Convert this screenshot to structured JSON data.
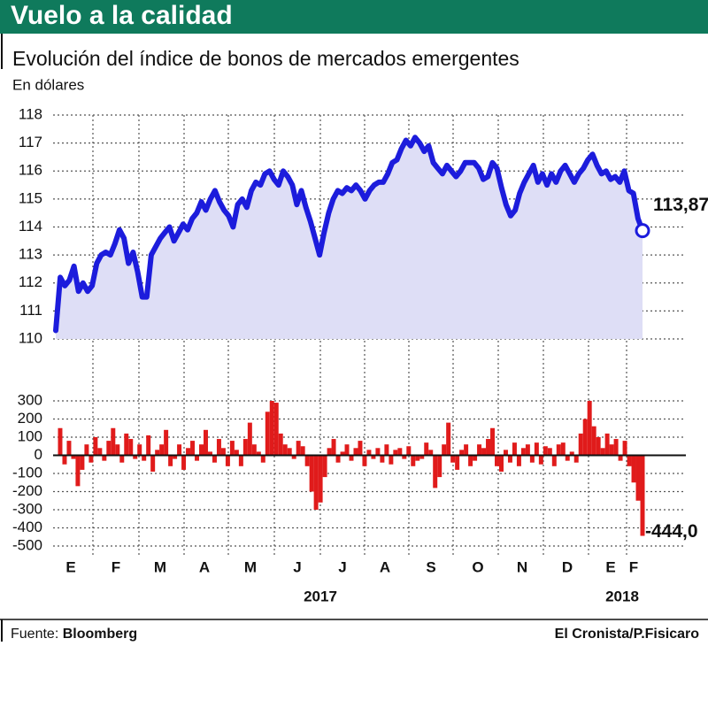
{
  "chart_data": [
    {
      "type": "line",
      "title": "Vuelo a la calidad",
      "subtitle": "Evolución del índice de bonos de mercados emergentes",
      "y_label": "En dólares",
      "ylim": [
        110,
        118
      ],
      "yticks": [
        110,
        111,
        112,
        113,
        114,
        115,
        116,
        117,
        118
      ],
      "grid": true,
      "series": [
        {
          "color": "#1c1cdc",
          "area_color": "#dedef6",
          "values": [
            110.3,
            112.2,
            111.9,
            112.1,
            112.6,
            111.7,
            112.0,
            111.7,
            111.9,
            112.7,
            113.0,
            113.1,
            113.0,
            113.4,
            113.9,
            113.6,
            112.7,
            113.1,
            112.4,
            111.5,
            111.5,
            113.0,
            113.3,
            113.6,
            113.8,
            114.0,
            113.5,
            113.8,
            114.1,
            113.9,
            114.3,
            114.5,
            114.9,
            114.6,
            115.0,
            115.3,
            114.9,
            114.6,
            114.4,
            114.0,
            114.8,
            115.0,
            114.7,
            115.3,
            115.6,
            115.5,
            115.9,
            116.0,
            115.7,
            115.5,
            116.0,
            115.8,
            115.5,
            114.8,
            115.3,
            114.7,
            114.2,
            113.6,
            113.0,
            113.8,
            114.5,
            115.0,
            115.3,
            115.2,
            115.4,
            115.3,
            115.5,
            115.3,
            115.0,
            115.3,
            115.5,
            115.6,
            115.6,
            115.9,
            116.3,
            116.4,
            116.8,
            117.1,
            116.9,
            117.2,
            117.0,
            116.7,
            116.9,
            116.3,
            116.1,
            115.9,
            116.2,
            116.0,
            115.8,
            116.0,
            116.3,
            116.3,
            116.3,
            116.1,
            115.7,
            115.8,
            116.3,
            116.1,
            115.4,
            114.8,
            114.4,
            114.6,
            115.2,
            115.6,
            115.9,
            116.2,
            115.6,
            115.9,
            115.5,
            115.9,
            115.6,
            116.0,
            116.2,
            115.9,
            115.6,
            115.9,
            116.1,
            116.4,
            116.6,
            116.2,
            115.9,
            116.0,
            115.7,
            115.8,
            115.6,
            116.0,
            115.3,
            115.2,
            114.3,
            113.87
          ]
        }
      ],
      "annotations": [
        {
          "label": "113,87",
          "value": 113.87
        }
      ]
    },
    {
      "type": "bar",
      "ylim": [
        -500,
        300
      ],
      "yticks": [
        300,
        200,
        100,
        0,
        -100,
        -200,
        -300,
        -400,
        -500
      ],
      "grid": true,
      "color": "#e01b1b",
      "values": [
        0,
        150,
        -50,
        80,
        -20,
        -170,
        -80,
        60,
        -40,
        100,
        40,
        -30,
        80,
        150,
        60,
        -40,
        120,
        90,
        -20,
        60,
        -30,
        110,
        -90,
        30,
        60,
        140,
        -60,
        -20,
        60,
        -80,
        40,
        80,
        -30,
        60,
        140,
        20,
        -40,
        90,
        40,
        -60,
        80,
        30,
        -60,
        90,
        180,
        60,
        20,
        -40,
        240,
        300,
        290,
        120,
        60,
        40,
        -20,
        80,
        50,
        -60,
        -200,
        -300,
        -260,
        -120,
        40,
        90,
        -40,
        20,
        60,
        -30,
        40,
        80,
        -60,
        30,
        -20,
        40,
        -40,
        60,
        -50,
        30,
        40,
        -20,
        50,
        -60,
        -30,
        -20,
        70,
        30,
        -180,
        -120,
        60,
        180,
        -40,
        -80,
        30,
        60,
        -60,
        -30,
        60,
        40,
        90,
        150,
        -60,
        -90,
        30,
        -40,
        70,
        -60,
        40,
        60,
        -40,
        70,
        -50,
        50,
        40,
        -60,
        60,
        70,
        -30,
        20,
        -40,
        120,
        200,
        300,
        160,
        100,
        40,
        120,
        60,
        90,
        -30,
        80,
        -60,
        -150,
        -250,
        -444
      ],
      "annotations": [
        {
          "label": "-444,0",
          "value": -444
        }
      ],
      "month_labels": [
        "E",
        "F",
        "M",
        "A",
        "M",
        "J",
        "J",
        "A",
        "S",
        "O",
        "N",
        "D",
        "E",
        "F"
      ],
      "year_labels": [
        "2017",
        "2018"
      ]
    }
  ],
  "footer": {
    "source_label": "Fuente:",
    "source": "Bloomberg",
    "credit": "El Cronista/P.Fisicaro"
  }
}
